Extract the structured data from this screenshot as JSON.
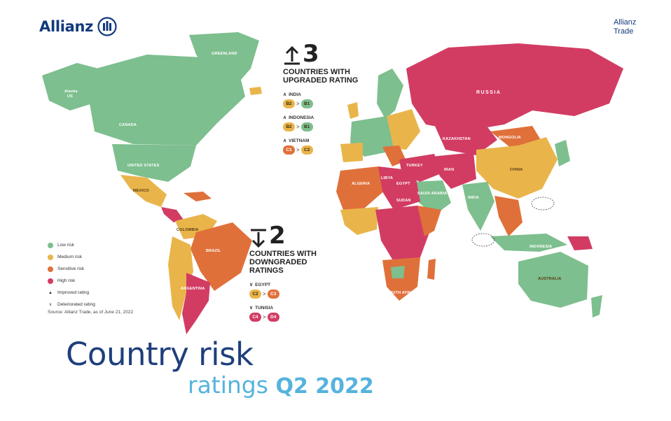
{
  "brand": {
    "logo_text": "Allianz",
    "trade_line1": "Allianz",
    "trade_line2": "Trade"
  },
  "colors": {
    "low": "#7dbf8e",
    "medium": "#e9b54b",
    "sensitive": "#e0703a",
    "high": "#d23c63",
    "brand_dark": "#123a7c",
    "title_light": "#56b3dd"
  },
  "upgrades": {
    "count": "3",
    "title": "COUNTRIES WITH UPGRADED RATING",
    "items": [
      {
        "country": "INDIA",
        "from": "B2",
        "to": "B1",
        "from_level": "medium",
        "to_level": "low"
      },
      {
        "country": "INDONESIA",
        "from": "B2",
        "to": "B1",
        "from_level": "medium",
        "to_level": "low"
      },
      {
        "country": "VIETNAM",
        "from": "C1",
        "to": "C2",
        "from_level": "sensitive",
        "to_level": "medium"
      }
    ]
  },
  "downgrades": {
    "count": "2",
    "title": "COUNTRIES WITH DOWNGRADED RATINGS",
    "items": [
      {
        "country": "EGYPT",
        "from": "C2",
        "to": "C3",
        "from_level": "medium",
        "to_level": "sensitive"
      },
      {
        "country": "TUNISIA",
        "from": "C4",
        "to": "D4",
        "from_level": "high",
        "to_level": "high"
      }
    ]
  },
  "legend": {
    "items": [
      {
        "label": "Low risk",
        "level": "low"
      },
      {
        "label": "Medium risk",
        "level": "medium"
      },
      {
        "label": "Sensitive risk",
        "level": "sensitive"
      },
      {
        "label": "High risk",
        "level": "high"
      }
    ],
    "improved": "Improved rating",
    "deteriorated": "Deteriorated rating"
  },
  "source": "Source: Allianz Trade, as of June 21, 2022",
  "map_labels": {
    "greenland": "GREENLAND",
    "alaska": "Alaska",
    "alaska_sub": "US",
    "canada": "CANADA",
    "united_states": "UNITED STATES",
    "mexico": "MEXICO",
    "brazil": "BRAZIL",
    "argentina": "ARGENTINA",
    "colombia": "COLOMBIA",
    "russia": "RUSSIA",
    "kazakhstan": "KAZAKHSTAN",
    "china": "CHINA",
    "mongolia": "MONGOLIA",
    "india": "INDIA",
    "iran": "IRAN",
    "turkey": "TURKEY",
    "saudi_arabia": "SAUDI ARABIA",
    "egypt": "EGYPT",
    "libya": "LIBYA",
    "algeria": "ALGERIA",
    "sudan": "SUDAN",
    "australia": "AUSTRALIA",
    "indonesia": "INDONESIA",
    "south_africa": "SOUTH AFRICA"
  },
  "title": {
    "line1": "Country risk",
    "line2_a": "ratings ",
    "line2_b": "Q2 2022"
  }
}
